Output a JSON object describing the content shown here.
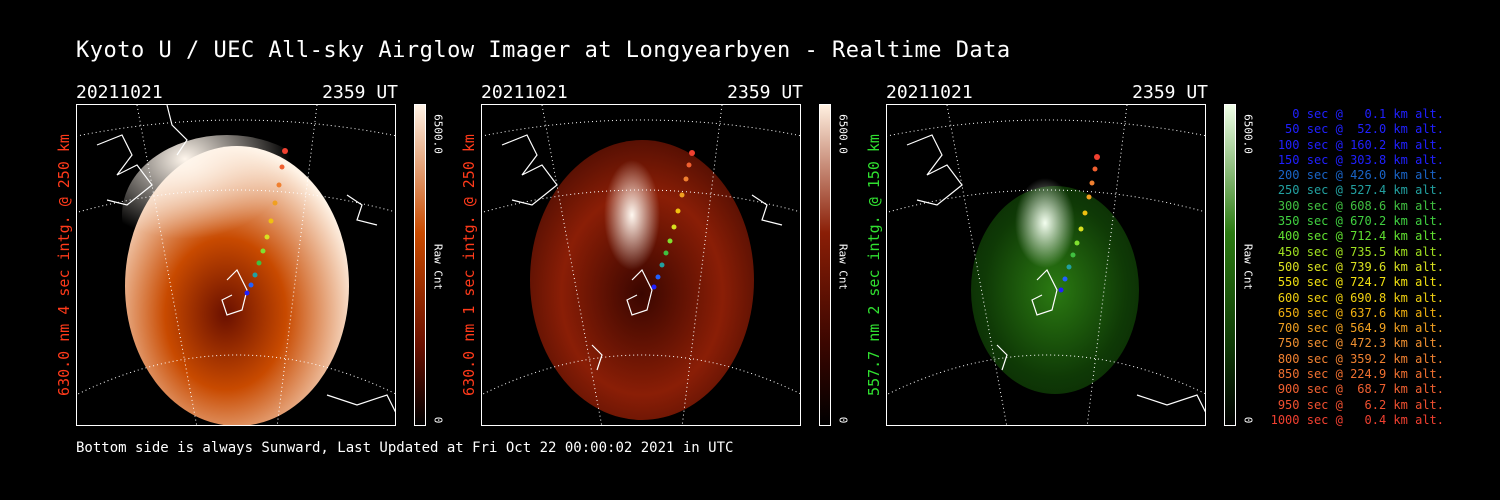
{
  "title": "Kyoto U / UEC All-sky Airglow Imager at Longyearbyen - Realtime Data",
  "footer": "Bottom side is always Sunward, Last Updated at Fri Oct 22 00:00:02 2021 in UTC",
  "panels": [
    {
      "date": "20211021",
      "time": "2359 UT",
      "ylabel": "630.0 nm 4 sec intg. @ 250 km",
      "ylabel_color": "#ff3a1a",
      "cbar_max": "6500.0",
      "cbar_unit": "Raw Cnt",
      "cbar_min": "0",
      "colors": {
        "lo": "#6a1000",
        "mid": "#c84a00",
        "hi": "#fff3e6"
      }
    },
    {
      "date": "20211021",
      "time": "2359 UT",
      "ylabel": "630.0 nm 1 sec intg. @ 250 km",
      "ylabel_color": "#ff3a1a",
      "cbar_max": "6500.0",
      "cbar_unit": "Raw Cnt",
      "cbar_min": "0",
      "colors": {
        "lo": "#3a0600",
        "mid": "#8a1e06",
        "hi": "#fff0e0"
      }
    },
    {
      "date": "20211021",
      "time": "2359 UT",
      "ylabel": "557.7 nm 2 sec intg. @ 150 km",
      "ylabel_color": "#30e030",
      "cbar_max": "6500.0",
      "cbar_unit": "Raw Cnt",
      "cbar_min": "0",
      "colors": {
        "lo": "#0f3a06",
        "mid": "#2b7a12",
        "hi": "#f0ffe8"
      }
    }
  ],
  "legend": [
    {
      "text": "0 sec @   0.1 km alt.",
      "color": "#2020ff"
    },
    {
      "text": "50 sec @  52.0 km alt.",
      "color": "#2020ff"
    },
    {
      "text": "100 sec @ 160.2 km alt.",
      "color": "#2020ff"
    },
    {
      "text": "150 sec @ 303.8 km alt.",
      "color": "#2020ff"
    },
    {
      "text": "200 sec @ 426.0 km alt.",
      "color": "#1a64c8"
    },
    {
      "text": "250 sec @ 527.4 km alt.",
      "color": "#22a0a0"
    },
    {
      "text": "300 sec @ 608.6 km alt.",
      "color": "#40c040"
    },
    {
      "text": "350 sec @ 670.2 km alt.",
      "color": "#40d040"
    },
    {
      "text": "400 sec @ 712.4 km alt.",
      "color": "#60e030"
    },
    {
      "text": "450 sec @ 735.5 km alt.",
      "color": "#a0e020"
    },
    {
      "text": "500 sec @ 739.6 km alt.",
      "color": "#d8e020"
    },
    {
      "text": "550 sec @ 724.7 km alt.",
      "color": "#f0e010"
    },
    {
      "text": "600 sec @ 690.8 km alt.",
      "color": "#f0d010"
    },
    {
      "text": "650 sec @ 637.6 km alt.",
      "color": "#f0b010"
    },
    {
      "text": "700 sec @ 564.9 km alt.",
      "color": "#f0a020"
    },
    {
      "text": "750 sec @ 472.3 km alt.",
      "color": "#f09030"
    },
    {
      "text": "800 sec @ 359.2 km alt.",
      "color": "#f08030"
    },
    {
      "text": "850 sec @ 224.9 km alt.",
      "color": "#f07030"
    },
    {
      "text": "900 sec @  68.7 km alt.",
      "color": "#f06030"
    },
    {
      "text": "950 sec @   6.2 km alt.",
      "color": "#f05030"
    },
    {
      "text": "1000 sec @   0.4 km alt.",
      "color": "#f04030"
    }
  ]
}
